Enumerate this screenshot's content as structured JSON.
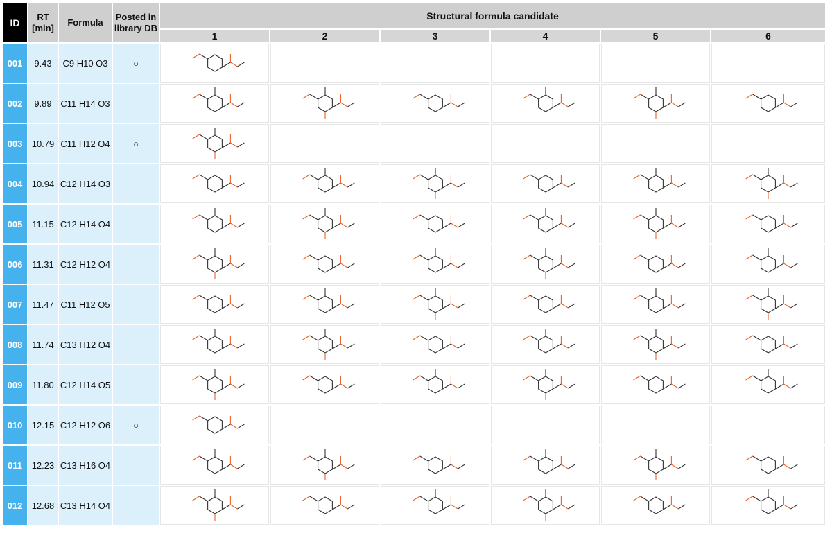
{
  "headers": {
    "id": "ID",
    "rt": "RT [min]",
    "formula": "Formula",
    "posted": "Posted in library DB",
    "candidates": "Structural formula candidate",
    "candidate_numbers": [
      "1",
      "2",
      "3",
      "4",
      "5",
      "6"
    ]
  },
  "rows": [
    {
      "id": "001",
      "rt": "9.43",
      "formula": "C9 H10 O3",
      "posted": "○",
      "structures": 1
    },
    {
      "id": "002",
      "rt": "9.89",
      "formula": "C11 H14 O3",
      "posted": "",
      "structures": 6
    },
    {
      "id": "003",
      "rt": "10.79",
      "formula": "C11 H12 O4",
      "posted": "○",
      "structures": 1
    },
    {
      "id": "004",
      "rt": "10.94",
      "formula": "C12 H14 O3",
      "posted": "",
      "structures": 6
    },
    {
      "id": "005",
      "rt": "11.15",
      "formula": "C12 H14 O4",
      "posted": "",
      "structures": 6
    },
    {
      "id": "006",
      "rt": "11.31",
      "formula": "C12 H12 O4",
      "posted": "",
      "structures": 6
    },
    {
      "id": "007",
      "rt": "11.47",
      "formula": "C11 H12 O5",
      "posted": "",
      "structures": 6
    },
    {
      "id": "008",
      "rt": "11.74",
      "formula": "C13 H12 O4",
      "posted": "",
      "structures": 6
    },
    {
      "id": "009",
      "rt": "11.80",
      "formula": "C12 H14 O5",
      "posted": "",
      "structures": 6
    },
    {
      "id": "010",
      "rt": "12.15",
      "formula": "C12 H12 O6",
      "posted": "○",
      "structures": 1
    },
    {
      "id": "011",
      "rt": "12.23",
      "formula": "C13 H16 O4",
      "posted": "",
      "structures": 6
    },
    {
      "id": "012",
      "rt": "12.68",
      "formula": "C13 H14 O4",
      "posted": "",
      "structures": 6
    }
  ],
  "colors": {
    "id_column": "#45b2ee",
    "info_column": "#dcf0fb",
    "header": "#cfcfcf",
    "bond": "#333333",
    "oxygen": "#e8622a"
  }
}
